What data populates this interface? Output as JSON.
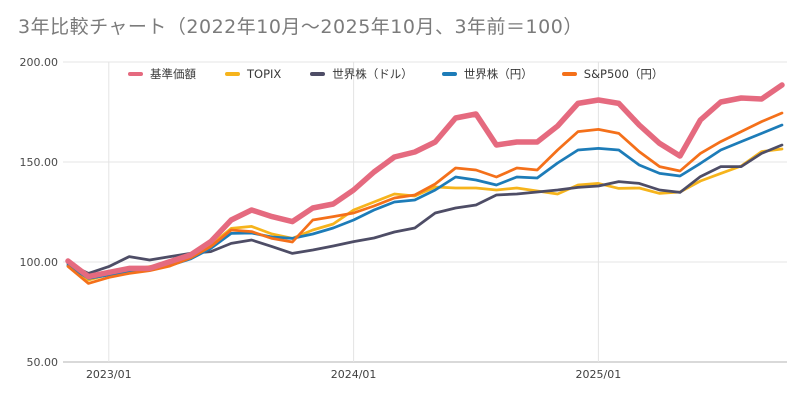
{
  "title": "3年比較チャート（2022年10月～2025年10月、3年前＝100）",
  "chart_data": {
    "type": "line",
    "title": "3年比較チャート（2022年10月～2025年10月、3年前＝100）",
    "ylim": [
      50,
      200
    ],
    "grid": true,
    "legend_position": "top",
    "y_ticks": [
      {
        "label": "200.00",
        "value": 200
      },
      {
        "label": "150.00",
        "value": 150
      },
      {
        "label": "100.00",
        "value": 100
      },
      {
        "label": "50.00",
        "value": 50
      }
    ],
    "x_labels": [
      "2023/01",
      "2024/01",
      "2025/01"
    ],
    "months": [
      "2022/11",
      "2022/12",
      "2023/01",
      "2023/02",
      "2023/03",
      "2023/04",
      "2023/05",
      "2023/06",
      "2023/07",
      "2023/08",
      "2023/09",
      "2023/10",
      "2023/11",
      "2023/12",
      "2024/01",
      "2024/02",
      "2024/03",
      "2024/04",
      "2024/05",
      "2024/06",
      "2024/07",
      "2024/08",
      "2024/09",
      "2024/10",
      "2024/11",
      "2024/12",
      "2025/01",
      "2025/02",
      "2025/03",
      "2025/04",
      "2025/05",
      "2025/06",
      "2025/07",
      "2025/08",
      "2025/09",
      "2025/10"
    ],
    "series": [
      {
        "name": "基準価額",
        "color": "#e56a7f",
        "width": 5.5,
        "values": [
          100.5,
          92.7,
          94.8,
          96.8,
          96.8,
          100.2,
          103.5,
          110.2,
          121,
          126,
          122.7,
          120.2,
          127,
          129,
          136,
          145,
          152.5,
          155,
          160,
          172,
          174,
          158.5,
          160,
          160,
          168,
          179.3,
          181,
          179.3,
          168.5,
          159.3,
          153,
          171,
          180,
          182,
          181.5,
          188.5
        ]
      },
      {
        "name": "TOPIX",
        "color": "#f6b41c",
        "width": 2.75,
        "values": [
          99,
          91,
          93.8,
          96,
          97.7,
          99.2,
          102.5,
          108.5,
          116.8,
          117.8,
          114,
          111.8,
          116,
          119,
          126,
          130,
          134,
          133,
          137.5,
          137,
          137,
          136,
          137,
          135.5,
          134,
          138.5,
          139.3,
          136.8,
          137,
          134.3,
          135,
          140.5,
          144.3,
          148,
          155.2,
          156.5
        ]
      },
      {
        "name": "世界株（ドル）",
        "color": "#4e4d66",
        "width": 2.75,
        "values": [
          99.2,
          94.3,
          97.7,
          102.7,
          101,
          102.7,
          104.3,
          105.2,
          109.3,
          111,
          107.7,
          104.3,
          106,
          108,
          110.2,
          112,
          115,
          117,
          124.5,
          127,
          128.5,
          133.5,
          134,
          135,
          136,
          137.3,
          138,
          140.2,
          139.3,
          136,
          134.8,
          142.7,
          147.7,
          147.7,
          154.3,
          158.5
        ]
      },
      {
        "name": "世界株（円）",
        "color": "#1d7cb8",
        "width": 2.75,
        "values": [
          98.3,
          91.8,
          93.5,
          95.2,
          96,
          98.3,
          101.5,
          106.8,
          114.3,
          114.5,
          112.5,
          111.8,
          114,
          117,
          121,
          126,
          130,
          131,
          136,
          142.5,
          141,
          138.5,
          142.5,
          142,
          149.5,
          156,
          156.8,
          156,
          148.5,
          144.3,
          143,
          149.3,
          156,
          160.2,
          164.3,
          168.5
        ]
      },
      {
        "name": "S&P500（円）",
        "color": "#f4701a",
        "width": 2.75,
        "values": [
          97.8,
          89.3,
          92.3,
          94.3,
          95.7,
          98,
          102,
          107.7,
          116,
          115.2,
          111.8,
          110,
          121,
          122.7,
          124.5,
          128,
          132,
          133.5,
          139,
          147,
          146,
          142.5,
          147,
          146,
          156,
          165.2,
          166.3,
          164.3,
          155.2,
          147.7,
          145.5,
          154.3,
          160.2,
          165.2,
          170.2,
          174.5
        ]
      }
    ]
  }
}
